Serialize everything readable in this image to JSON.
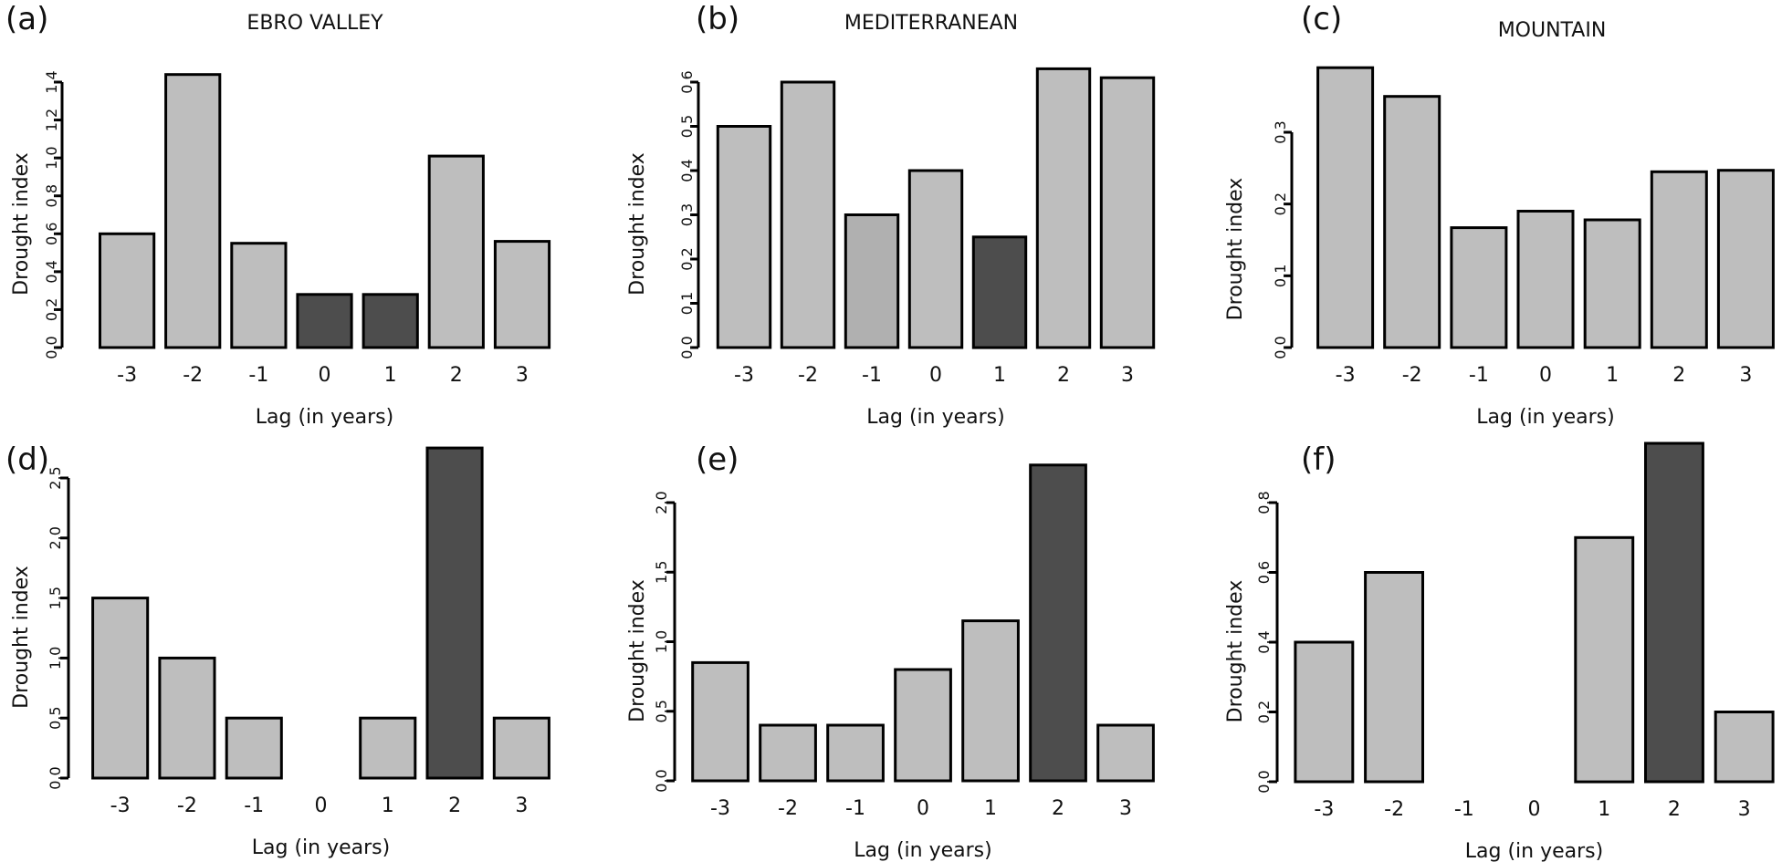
{
  "figure": {
    "colors": {
      "bar_light": "#bebebe",
      "bar_mid": "#b0b0b0",
      "bar_dark": "#4d4d4d",
      "outline": "#000000"
    }
  },
  "chart_data": [
    {
      "type": "bar",
      "panel": "(a)",
      "title": "EBRO VALLEY",
      "xlabel": "Lag (in years)",
      "ylabel": "Drought index",
      "categories": [
        "-3",
        "-2",
        "-1",
        "0",
        "1",
        "2",
        "3"
      ],
      "values": [
        0.6,
        1.44,
        0.55,
        0.28,
        0.28,
        1.01,
        0.56
      ],
      "highlight": [
        false,
        false,
        false,
        true,
        true,
        false,
        false
      ],
      "shade": [
        "light",
        "light",
        "light",
        "dark",
        "dark",
        "light",
        "light"
      ],
      "yticks": [
        0.0,
        0.2,
        0.4,
        0.6,
        0.8,
        1.0,
        1.2,
        1.4
      ],
      "ytick_labels": [
        "0.0",
        "0.2",
        "0.4",
        "0.6",
        "0.8",
        "1.0",
        "1.2",
        "1.4"
      ],
      "ylim": [
        0,
        1.4
      ],
      "grid": false
    },
    {
      "type": "bar",
      "panel": "(b)",
      "title": "MEDITERRANEAN",
      "xlabel": "Lag (in years)",
      "ylabel": "Drought index",
      "categories": [
        "-3",
        "-2",
        "-1",
        "0",
        "1",
        "2",
        "3"
      ],
      "values": [
        0.5,
        0.6,
        0.3,
        0.4,
        0.25,
        0.63,
        0.61
      ],
      "highlight": [
        false,
        false,
        false,
        false,
        true,
        false,
        false
      ],
      "shade": [
        "light",
        "light",
        "mid",
        "light",
        "dark",
        "light",
        "light"
      ],
      "yticks": [
        0.0,
        0.1,
        0.2,
        0.3,
        0.4,
        0.5,
        0.6
      ],
      "ytick_labels": [
        "0.0",
        "0.1",
        "0.2",
        "0.3",
        "0.4",
        "0.5",
        "0.6"
      ],
      "ylim": [
        0,
        0.6
      ],
      "grid": false
    },
    {
      "type": "bar",
      "panel": "(c)",
      "title": "MOUNTAIN",
      "xlabel": "Lag (in years)",
      "ylabel": "Drought index",
      "categories": [
        "-3",
        "-2",
        "-1",
        "0",
        "1",
        "2",
        "3"
      ],
      "values": [
        0.39,
        0.35,
        0.167,
        0.19,
        0.178,
        0.245,
        0.247
      ],
      "highlight": [
        false,
        false,
        false,
        false,
        false,
        false,
        false
      ],
      "shade": [
        "light",
        "light",
        "light",
        "light",
        "light",
        "light",
        "light"
      ],
      "yticks": [
        0.0,
        0.1,
        0.2,
        0.3
      ],
      "ytick_labels": [
        "0.0",
        "0.1",
        "0.2",
        "0.3"
      ],
      "ylim": [
        0,
        0.3
      ],
      "grid": false
    },
    {
      "type": "bar",
      "panel": "(d)",
      "title": "",
      "xlabel": "Lag (in years)",
      "ylabel": "Drought index",
      "categories": [
        "-3",
        "-2",
        "-1",
        "0",
        "1",
        "2",
        "3"
      ],
      "values": [
        1.5,
        1.0,
        0.5,
        0.0,
        0.5,
        2.75,
        0.5
      ],
      "highlight": [
        false,
        false,
        false,
        false,
        false,
        true,
        false
      ],
      "shade": [
        "light",
        "light",
        "light",
        "light",
        "light",
        "dark",
        "light"
      ],
      "yticks": [
        0.0,
        0.5,
        1.0,
        1.5,
        2.0,
        2.5
      ],
      "ytick_labels": [
        "0.0",
        "0.5",
        "1.0",
        "1.5",
        "2.0",
        "2.5"
      ],
      "ylim": [
        0,
        2.5
      ],
      "grid": false
    },
    {
      "type": "bar",
      "panel": "(e)",
      "title": "",
      "xlabel": "Lag (in years)",
      "ylabel": "Drought index",
      "categories": [
        "-3",
        "-2",
        "-1",
        "0",
        "1",
        "2",
        "3"
      ],
      "values": [
        0.85,
        0.4,
        0.4,
        0.8,
        1.15,
        2.27,
        0.4
      ],
      "highlight": [
        false,
        false,
        false,
        false,
        false,
        true,
        false
      ],
      "shade": [
        "light",
        "light",
        "light",
        "light",
        "light",
        "dark",
        "light"
      ],
      "yticks": [
        0.0,
        0.5,
        1.0,
        1.5,
        2.0
      ],
      "ytick_labels": [
        "0.0",
        "0.5",
        "1.0",
        "1.5",
        "2.0"
      ],
      "ylim": [
        0,
        2.0
      ],
      "grid": false
    },
    {
      "type": "bar",
      "panel": "(f)",
      "title": "",
      "xlabel": "Lag (in years)",
      "ylabel": "Drought index",
      "categories": [
        "-3",
        "-2",
        "-1",
        "0",
        "1",
        "2",
        "3"
      ],
      "values": [
        0.4,
        0.6,
        0.0,
        0.0,
        0.7,
        0.97,
        0.2
      ],
      "highlight": [
        false,
        false,
        false,
        false,
        false,
        true,
        false
      ],
      "shade": [
        "light",
        "light",
        "light",
        "light",
        "light",
        "dark",
        "light"
      ],
      "yticks": [
        0.0,
        0.2,
        0.4,
        0.6,
        0.8
      ],
      "ytick_labels": [
        "0.0",
        "0.2",
        "0.4",
        "0.6",
        "0.8"
      ],
      "ylim": [
        0,
        0.8
      ],
      "grid": false
    }
  ]
}
